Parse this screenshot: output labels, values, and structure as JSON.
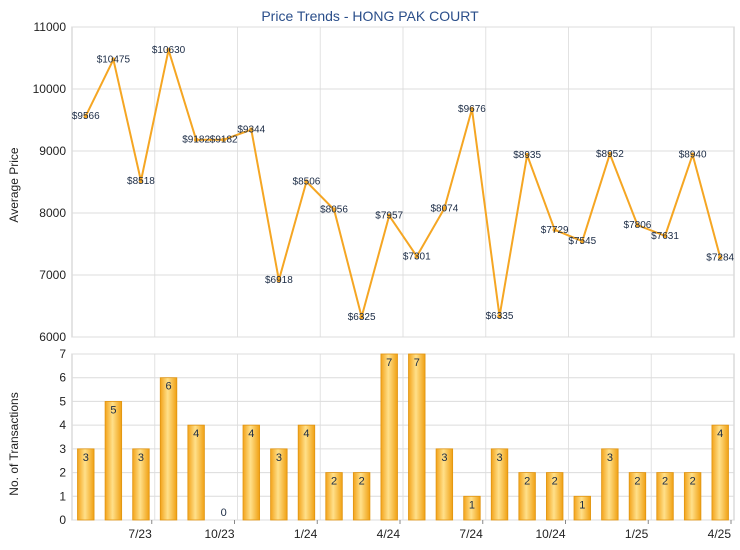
{
  "chart_data": [
    {
      "type": "line",
      "title": "Price Trends - HONG PAK COURT",
      "xlabel": "",
      "ylabel": "Average Price",
      "ylim": [
        6000,
        11000
      ],
      "yticks": [
        6000,
        7000,
        8000,
        9000,
        10000,
        11000
      ],
      "grid": true,
      "color": "#f5a623",
      "values": [
        9566,
        10475,
        8518,
        10630,
        9182,
        9182,
        9344,
        6918,
        8506,
        8056,
        6325,
        7957,
        7301,
        8074,
        9676,
        6335,
        8935,
        7729,
        7545,
        8952,
        7806,
        7631,
        8940,
        7284
      ],
      "value_labels": [
        "$9566",
        "$10475",
        "$8518",
        "$10630",
        "$9182",
        "$9182",
        "$9344",
        "$6918",
        "$8506",
        "$8056",
        "$6325",
        "$7957",
        "$7301",
        "$8074",
        "$9676",
        "$6335",
        "$8935",
        "$7729",
        "$7545",
        "$8952",
        "$7806",
        "$7631",
        "$8940",
        "$7284"
      ]
    },
    {
      "type": "bar",
      "xlabel": "",
      "ylabel": "No. of Transactions",
      "ylim": [
        0,
        7
      ],
      "yticks": [
        0,
        1,
        2,
        3,
        4,
        5,
        6,
        7
      ],
      "grid": true,
      "color": "#f5a623",
      "values": [
        3,
        5,
        3,
        6,
        4,
        0,
        4,
        3,
        4,
        2,
        2,
        7,
        7,
        3,
        1,
        3,
        2,
        2,
        1,
        3,
        2,
        2,
        2,
        4
      ],
      "xtick_labels": [
        "7/23",
        "10/23",
        "1/24",
        "4/24",
        "7/24",
        "10/24",
        "1/25",
        "4/25"
      ]
    }
  ]
}
